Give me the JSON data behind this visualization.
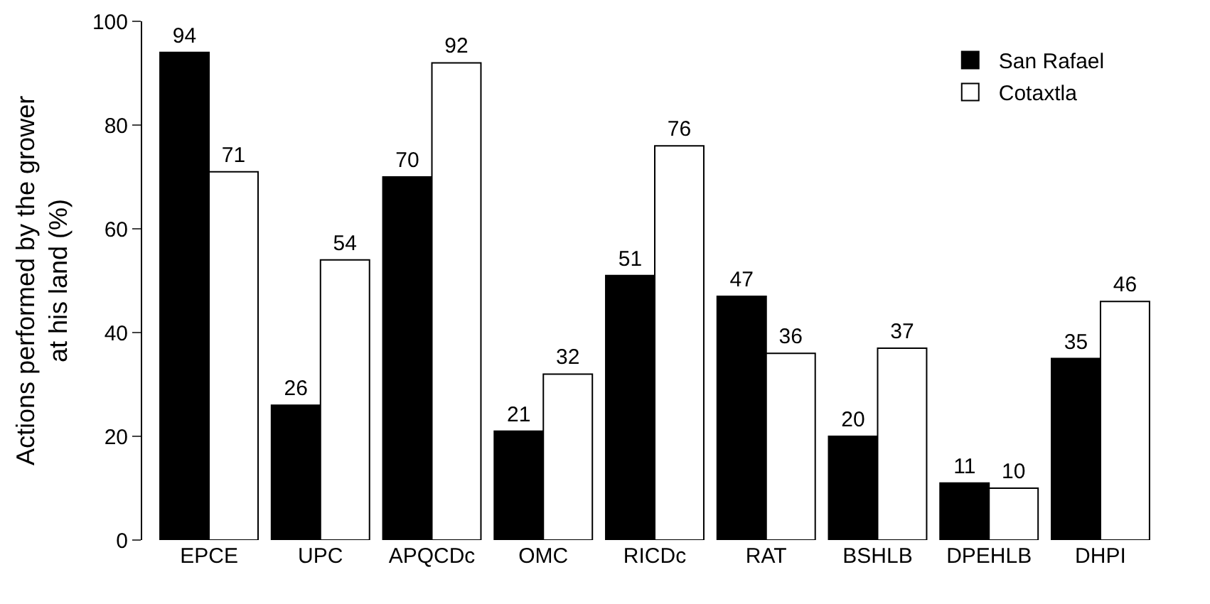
{
  "chart_data": {
    "type": "bar",
    "ylabel": "Actions performed by the grower\nat his land (%)",
    "categories": [
      "EPCE",
      "UPC",
      "APQCDc",
      "OMC",
      "RICDc",
      "RAT",
      "BSHLB",
      "DPEHLB",
      "DHPI"
    ],
    "series": [
      {
        "name": "San Rafael",
        "color": "#000000",
        "values": [
          94,
          26,
          70,
          21,
          51,
          47,
          20,
          11,
          35
        ]
      },
      {
        "name": "Cotaxtla",
        "color": "#ffffff",
        "values": [
          71,
          54,
          92,
          32,
          76,
          36,
          37,
          10,
          46
        ]
      }
    ],
    "ylim": [
      0,
      100
    ],
    "yticks": [
      0,
      20,
      40,
      60,
      80,
      100
    ],
    "grid": false,
    "legend": "top right",
    "data_labels": true
  }
}
